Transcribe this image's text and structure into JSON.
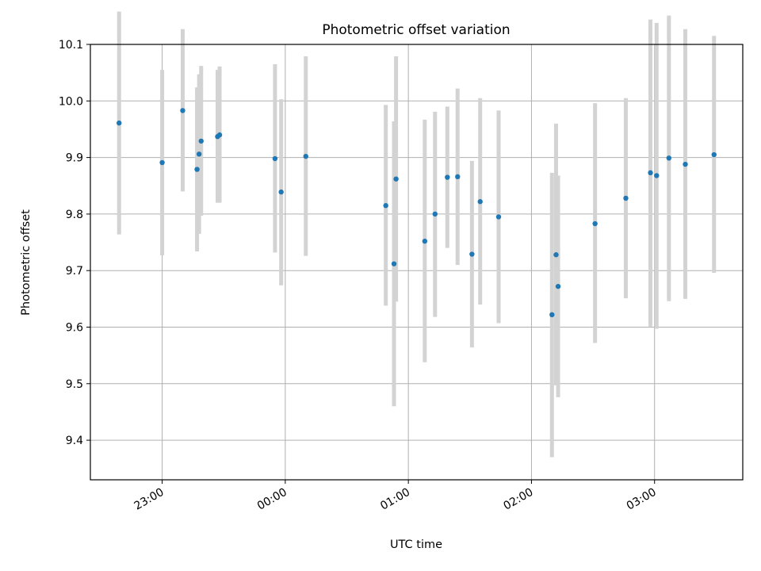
{
  "chart_data": {
    "type": "scatter",
    "title": "Photometric offset variation",
    "xlabel": "UTC time",
    "ylabel": "Photometric offset",
    "grid": true,
    "xlim": [
      "22:25",
      "03:43"
    ],
    "ylim": [
      9.33,
      10.1
    ],
    "x_ticks": [
      "23:00",
      "00:00",
      "01:00",
      "02:00",
      "03:00"
    ],
    "y_ticks": [
      9.4,
      9.5,
      9.6,
      9.7,
      9.8,
      9.9,
      10.0,
      10.1
    ],
    "y_tick_labels": [
      "9.4",
      "9.5",
      "9.6",
      "9.7",
      "9.8",
      "9.9",
      "10.0",
      "10.1"
    ],
    "marker_color": "#1f77b4",
    "errorbar_color": "#d3d3d3",
    "points": [
      {
        "x": "22:39",
        "y": 9.961,
        "low": 9.764,
        "high": 10.158
      },
      {
        "x": "23:00",
        "y": 9.891,
        "low": 9.727,
        "high": 10.055
      },
      {
        "x": "23:10",
        "y": 9.983,
        "low": 9.84,
        "high": 10.127
      },
      {
        "x": "23:17",
        "y": 9.879,
        "low": 9.734,
        "high": 10.024
      },
      {
        "x": "23:18",
        "y": 9.906,
        "low": 9.765,
        "high": 10.047
      },
      {
        "x": "23:19",
        "y": 9.929,
        "low": 9.797,
        "high": 10.062
      },
      {
        "x": "23:27",
        "y": 9.937,
        "low": 9.82,
        "high": 10.055
      },
      {
        "x": "23:28",
        "y": 9.94,
        "low": 9.82,
        "high": 10.061
      },
      {
        "x": "23:55",
        "y": 9.898,
        "low": 9.732,
        "high": 10.065
      },
      {
        "x": "23:58",
        "y": 9.839,
        "low": 9.674,
        "high": 10.003
      },
      {
        "x": "00:10",
        "y": 9.902,
        "low": 9.726,
        "high": 10.079
      },
      {
        "x": "00:49",
        "y": 9.815,
        "low": 9.638,
        "high": 9.993
      },
      {
        "x": "00:53",
        "y": 9.712,
        "low": 9.46,
        "high": 9.964
      },
      {
        "x": "00:54",
        "y": 9.862,
        "low": 9.645,
        "high": 10.079
      },
      {
        "x": "01:08",
        "y": 9.752,
        "low": 9.538,
        "high": 9.967
      },
      {
        "x": "01:13",
        "y": 9.8,
        "low": 9.618,
        "high": 9.981
      },
      {
        "x": "01:19",
        "y": 9.865,
        "low": 9.74,
        "high": 9.99
      },
      {
        "x": "01:24",
        "y": 9.866,
        "low": 9.71,
        "high": 10.022
      },
      {
        "x": "01:31",
        "y": 9.729,
        "low": 9.564,
        "high": 9.894
      },
      {
        "x": "01:35",
        "y": 9.822,
        "low": 9.64,
        "high": 10.005
      },
      {
        "x": "01:44",
        "y": 9.795,
        "low": 9.607,
        "high": 9.983
      },
      {
        "x": "02:10",
        "y": 9.622,
        "low": 9.37,
        "high": 9.873
      },
      {
        "x": "02:12",
        "y": 9.728,
        "low": 9.497,
        "high": 9.96
      },
      {
        "x": "02:13",
        "y": 9.672,
        "low": 9.476,
        "high": 9.868
      },
      {
        "x": "02:31",
        "y": 9.783,
        "low": 9.572,
        "high": 9.996
      },
      {
        "x": "02:46",
        "y": 9.828,
        "low": 9.651,
        "high": 10.005
      },
      {
        "x": "02:58",
        "y": 9.873,
        "low": 9.601,
        "high": 10.144
      },
      {
        "x": "03:01",
        "y": 9.868,
        "low": 9.597,
        "high": 10.138
      },
      {
        "x": "03:07",
        "y": 9.899,
        "low": 9.646,
        "high": 10.151
      },
      {
        "x": "03:15",
        "y": 9.888,
        "low": 9.65,
        "high": 10.127
      },
      {
        "x": "03:29",
        "y": 9.905,
        "low": 9.696,
        "high": 10.115
      }
    ]
  }
}
